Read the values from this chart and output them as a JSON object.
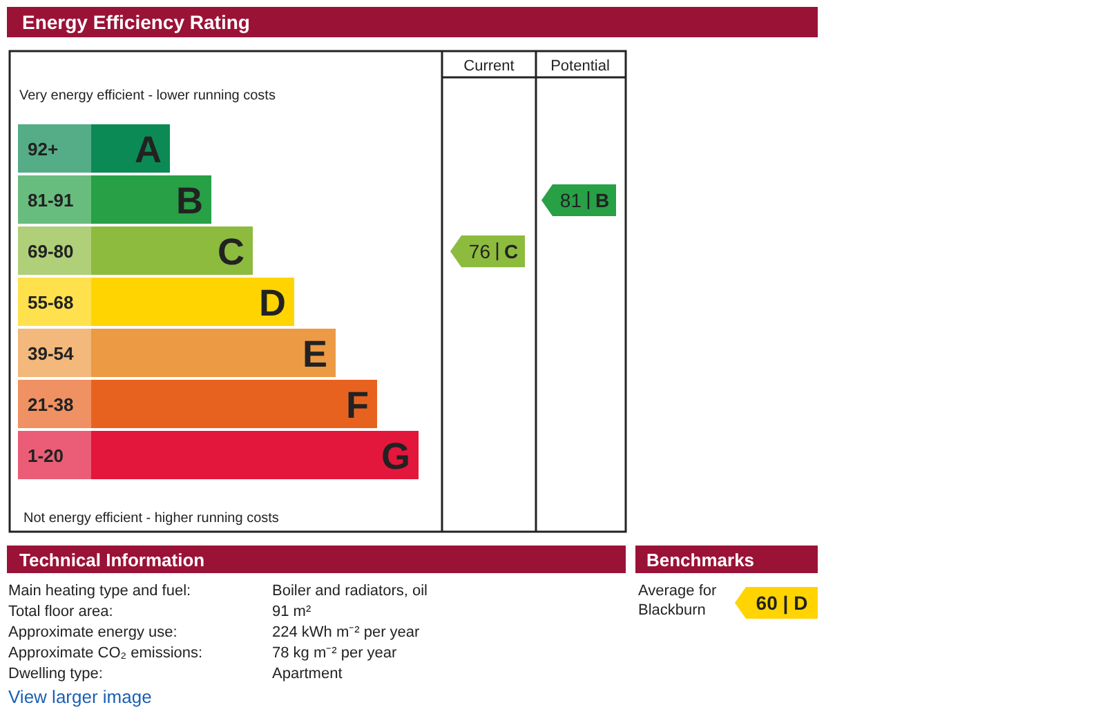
{
  "chart_data": [
    {
      "type": "other",
      "title": "Energy Efficiency Rating",
      "categories": [
        "92+",
        "81-91",
        "69-80",
        "55-68",
        "39-54",
        "21-38",
        "1-20"
      ],
      "value_labels": [
        "A",
        "B",
        "C",
        "D",
        "E",
        "F",
        "G"
      ],
      "data_labels": true,
      "colors": [
        "#0c8a55",
        "#27a046",
        "#8dbb3e",
        "#ffd400",
        "#ec9a44",
        "#e8621f",
        "#e2173b"
      ],
      "series": [
        {
          "color": "#8dbb3e",
          "values": [
            null,
            null,
            76,
            null,
            null,
            null,
            null
          ]
        },
        {
          "color": "#27a046",
          "values": [
            null,
            81,
            null,
            null,
            null,
            null,
            null
          ]
        }
      ],
      "annotations": [
        "Very energy efficient - lower running costs",
        "Not energy efficient - higher running costs",
        "Current",
        "Potential"
      ]
    },
    {
      "type": "other",
      "title": "Technical Information",
      "annotations": [
        "Main heating type and fuel:",
        "Boiler and radiators, oil",
        "Total floor area:",
        "91 m²",
        "Approximate energy use:",
        "224 kWh m⁻² per year",
        "Approximate CO₂ emissions:",
        "78 kg m⁻² per year",
        "Dwelling type:",
        "Apartment",
        "View larger image"
      ]
    },
    {
      "type": "other",
      "title": "Benchmarks",
      "color": "#ffd400",
      "annotations": [
        "Average for Blackburn",
        "60 | D"
      ]
    }
  ]
}
